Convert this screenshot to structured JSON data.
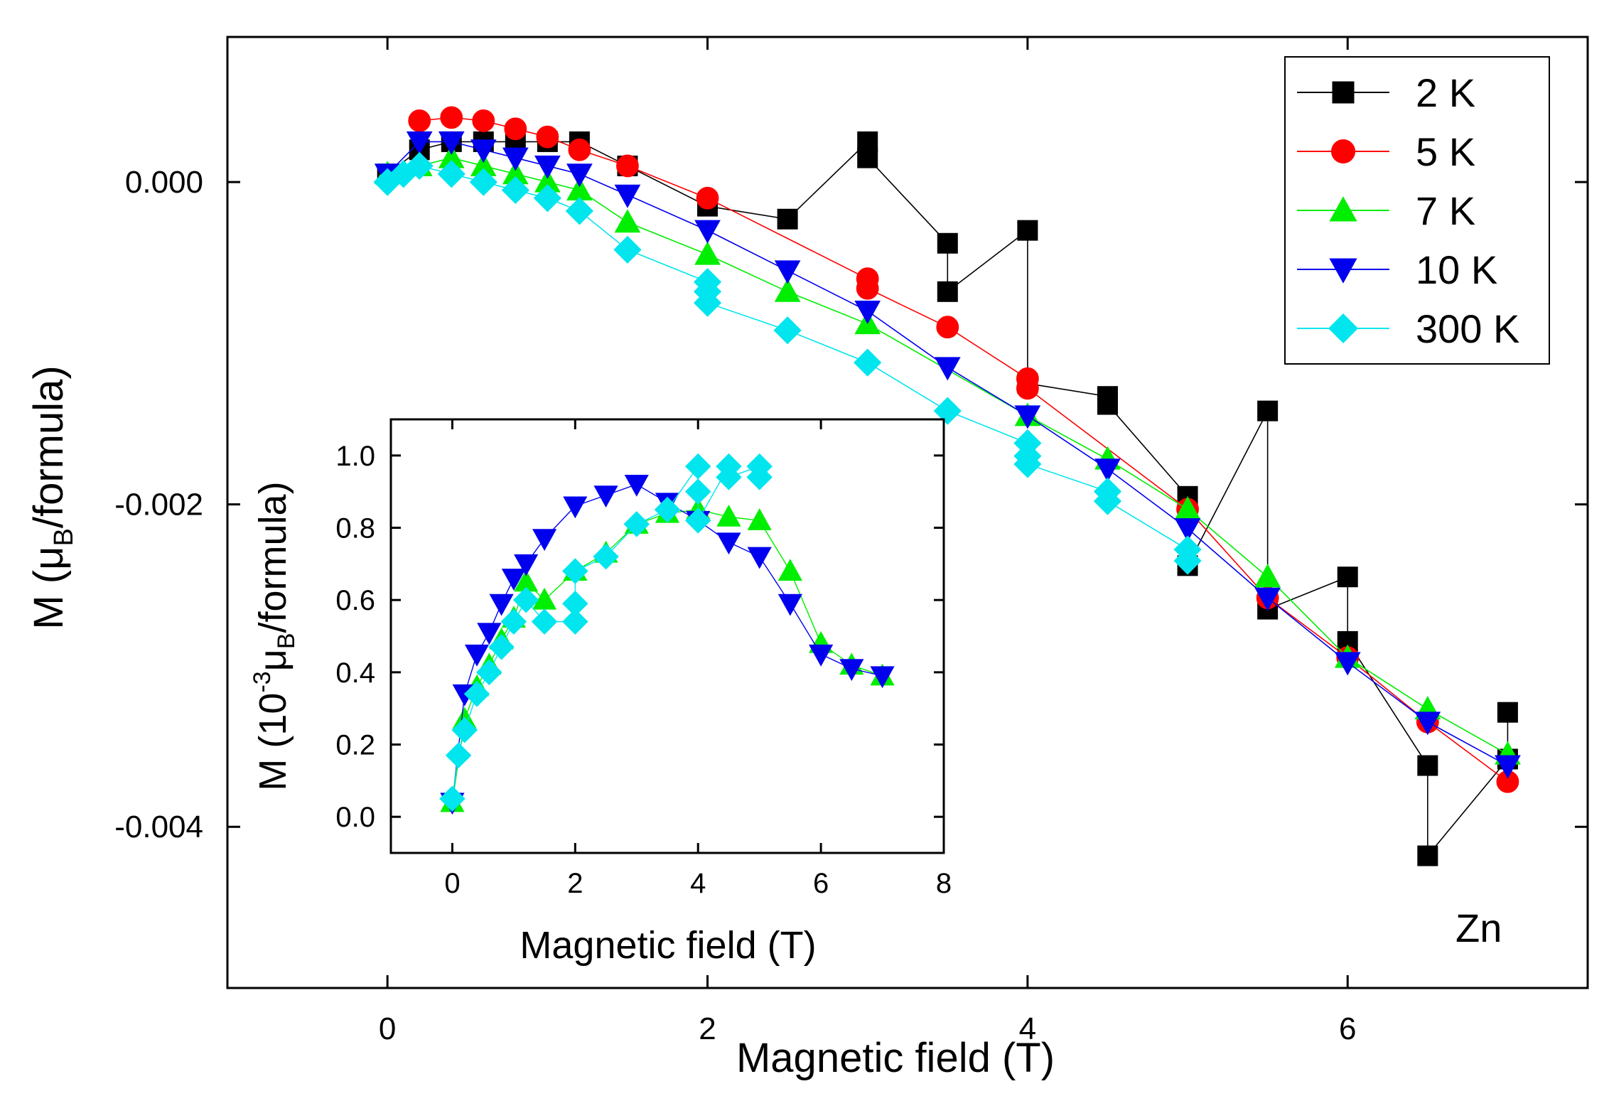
{
  "chart_data": [
    {
      "type": "line",
      "role": "main",
      "xlabel": "Magnetic field (T)",
      "ylabel": "M (μB/formula)",
      "ylabel_main": "M (μ",
      "ylabel_sub": "B",
      "ylabel_rest": "/formula)",
      "xlim": [
        -1,
        7.5
      ],
      "ylim": [
        -0.005,
        0.0009
      ],
      "xticks": [
        0,
        2,
        4,
        6
      ],
      "xtick_labels": [
        "0",
        "2",
        "4",
        "6"
      ],
      "yticks": [
        0,
        -0.002,
        -0.004
      ],
      "ytick_labels": [
        "0.000",
        "-0.002",
        "-0.004"
      ],
      "annotation": "Zn",
      "legend_position": "top-right",
      "series": [
        {
          "name": "2 K",
          "color": "#000000",
          "marker": "square",
          "x": [
            0,
            0.2,
            0.4,
            0.6,
            0.8,
            1.0,
            1.2,
            1.5,
            2.0,
            2.5,
            3.0,
            3.0,
            3.5,
            3.5,
            4.0,
            4.0,
            4.5,
            4.5,
            5.0,
            5.0,
            5.5,
            5.5,
            6.0,
            6.0,
            6.5,
            6.5,
            7.0,
            7.0
          ],
          "y": [
            5e-05,
            0.0002,
            0.00025,
            0.00025,
            0.00025,
            0.00025,
            0.00025,
            0.0001,
            -0.00015,
            -0.00023,
            0.00025,
            0.00015,
            -0.00038,
            -0.00068,
            -0.0003,
            -0.00125,
            -0.00133,
            -0.00138,
            -0.00195,
            -0.00238,
            -0.00142,
            -0.00265,
            -0.00245,
            -0.00285,
            -0.00362,
            -0.00418,
            -0.00358,
            -0.00329
          ]
        },
        {
          "name": "5 K",
          "color": "#ff0000",
          "marker": "circle",
          "x": [
            0.2,
            0.4,
            0.6,
            0.8,
            1.0,
            1.2,
            1.5,
            2.0,
            3.0,
            3.0,
            3.5,
            4.0,
            4.0,
            5.0,
            5.5,
            6.0,
            6.5,
            7.0
          ],
          "y": [
            0.00038,
            0.0004,
            0.00038,
            0.00033,
            0.00028,
            0.0002,
            0.0001,
            -0.0001,
            -0.0006,
            -0.00066,
            -0.0009,
            -0.00122,
            -0.00128,
            -0.00203,
            -0.00258,
            -0.00295,
            -0.00335,
            -0.00372
          ]
        },
        {
          "name": "7 K",
          "color": "#00ee00",
          "marker": "triangle-up",
          "x": [
            0,
            0.2,
            0.4,
            0.6,
            0.8,
            1.0,
            1.2,
            1.5,
            2.0,
            2.5,
            3.0,
            4.0,
            4.5,
            5.0,
            5.5,
            6.0,
            6.5,
            7.0
          ],
          "y": [
            5e-05,
            0.0001,
            0.00015,
            0.0001,
            5e-05,
            0,
            -5e-05,
            -0.00025,
            -0.00045,
            -0.00068,
            -0.00088,
            -0.00145,
            -0.00172,
            -0.00203,
            -0.00245,
            -0.00295,
            -0.00327,
            -0.00355
          ]
        },
        {
          "name": "10 K",
          "color": "#0000ee",
          "marker": "triangle-down",
          "x": [
            0,
            0.2,
            0.4,
            0.6,
            0.8,
            1.0,
            1.2,
            1.5,
            2.0,
            2.5,
            3.0,
            3.5,
            4.0,
            4.5,
            5.0,
            5.5,
            6.0,
            6.5,
            7.0
          ],
          "y": [
            5e-05,
            0.00025,
            0.00025,
            0.0002,
            0.00015,
            0.0001,
            5e-05,
            -8e-05,
            -0.0003,
            -0.00055,
            -0.0008,
            -0.00115,
            -0.00145,
            -0.00178,
            -0.00215,
            -0.00258,
            -0.00298,
            -0.00335,
            -0.00362
          ]
        },
        {
          "name": "300 K",
          "color": "#00e5ee",
          "marker": "diamond",
          "x": [
            0,
            0.1,
            0.2,
            0.4,
            0.6,
            0.8,
            1.0,
            1.2,
            1.5,
            2.0,
            2.0,
            2.0,
            2.5,
            3.0,
            3.5,
            4.0,
            4.0,
            4.0,
            4.5,
            4.5,
            5.0,
            5.0
          ],
          "y": [
            0,
            5e-05,
            0.0001,
            5e-05,
            0,
            -5e-05,
            -0.0001,
            -0.00018,
            -0.00042,
            -0.00062,
            -0.00068,
            -0.00075,
            -0.00092,
            -0.00112,
            -0.00142,
            -0.00162,
            -0.0017,
            -0.00175,
            -0.00192,
            -0.00198,
            -0.00228,
            -0.00235
          ]
        }
      ]
    },
    {
      "type": "line",
      "role": "inset",
      "xlabel": "Magnetic field (T)",
      "ylabel": "M (10-3μB/formula)",
      "ylabel_main": "M (10",
      "ylabel_sup": "-3",
      "ylabel_mu": "μ",
      "ylabel_sub": "B",
      "ylabel_rest": "/formula)",
      "xlim": [
        -1,
        8
      ],
      "ylim": [
        -0.1,
        1.1
      ],
      "xticks": [
        0,
        2,
        4,
        6,
        8
      ],
      "xtick_labels": [
        "0",
        "2",
        "4",
        "6",
        "8"
      ],
      "yticks": [
        0,
        0.2,
        0.4,
        0.6,
        0.8,
        1.0
      ],
      "ytick_labels": [
        "0.0",
        "0.2",
        "0.4",
        "0.6",
        "0.8",
        "1.0"
      ],
      "series": [
        {
          "name": "7 K",
          "color": "#00ee00",
          "marker": "triangle-up",
          "x": [
            0,
            0.2,
            0.4,
            0.6,
            0.8,
            1.0,
            1.2,
            1.5,
            2.0,
            2.5,
            3.0,
            3.5,
            4.0,
            4.5,
            5.0,
            5.5,
            6.0,
            6.5,
            7.0
          ],
          "y": [
            0.04,
            0.27,
            0.36,
            0.42,
            0.49,
            0.55,
            0.65,
            0.6,
            0.68,
            0.73,
            0.81,
            0.84,
            0.85,
            0.83,
            0.82,
            0.68,
            0.48,
            0.42,
            0.39
          ]
        },
        {
          "name": "10 K",
          "color": "#0000ee",
          "marker": "triangle-down",
          "x": [
            0,
            0.2,
            0.4,
            0.6,
            0.8,
            1.0,
            1.2,
            1.5,
            2.0,
            2.5,
            3.0,
            3.5,
            4.0,
            4.5,
            5.0,
            5.5,
            6.0,
            6.5,
            7.0
          ],
          "y": [
            0.04,
            0.34,
            0.45,
            0.51,
            0.59,
            0.66,
            0.7,
            0.77,
            0.86,
            0.89,
            0.92,
            0.87,
            0.82,
            0.76,
            0.72,
            0.59,
            0.45,
            0.41,
            0.39
          ]
        },
        {
          "name": "300 K",
          "color": "#00e5ee",
          "marker": "diamond",
          "x": [
            0,
            0.1,
            0.2,
            0.4,
            0.6,
            0.8,
            1.0,
            1.2,
            1.5,
            2.0,
            2.0,
            2.0,
            2.5,
            3.0,
            3.5,
            4.0,
            4.0,
            4.0,
            4.5,
            4.5,
            5.0,
            5.0
          ],
          "y": [
            0.05,
            0.17,
            0.24,
            0.34,
            0.4,
            0.47,
            0.54,
            0.6,
            0.54,
            0.54,
            0.59,
            0.68,
            0.72,
            0.81,
            0.85,
            0.97,
            0.9,
            0.82,
            0.97,
            0.94,
            0.97,
            0.94
          ]
        }
      ]
    }
  ]
}
